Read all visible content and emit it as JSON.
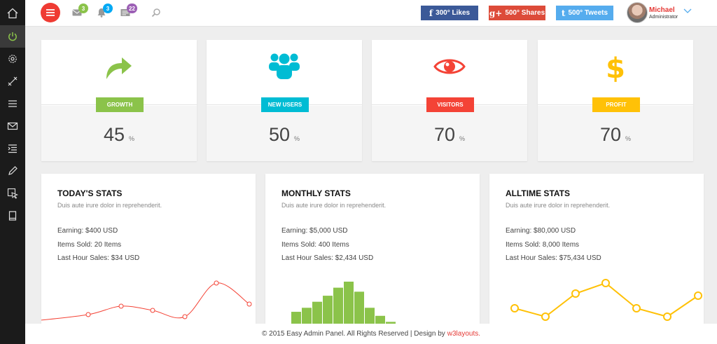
{
  "header": {
    "badges": {
      "mail": "3",
      "bell": "3",
      "messages": "22"
    },
    "social": {
      "facebook": {
        "label": "300° Likes",
        "glyph": "f",
        "color": "#3b5998"
      },
      "google": {
        "label": "500° Shares",
        "glyph": "g+",
        "color": "#dd4b39"
      },
      "twitter": {
        "label": "500° Tweets",
        "glyph": "t",
        "color": "#55acee"
      }
    },
    "user": {
      "name": "Michael",
      "role": "Administrator"
    }
  },
  "sidebar": {
    "items": [
      {
        "icon": "home-icon"
      },
      {
        "icon": "power-icon",
        "active": true
      },
      {
        "icon": "gear-icon"
      },
      {
        "icon": "tools-icon"
      },
      {
        "icon": "list-icon"
      },
      {
        "icon": "mail-icon"
      },
      {
        "icon": "indent-icon"
      },
      {
        "icon": "pencil-icon"
      },
      {
        "icon": "cursor-icon"
      },
      {
        "icon": "book-icon"
      }
    ]
  },
  "cards": [
    {
      "label": "Growth",
      "value": "45",
      "unit": "%",
      "color": "#8bc34a",
      "icon": "share-arrow-icon"
    },
    {
      "label": "New Users",
      "value": "50",
      "unit": "%",
      "color": "#00bcd4",
      "icon": "users-icon"
    },
    {
      "label": "Visitors",
      "value": "70",
      "unit": "%",
      "color": "#f44336",
      "icon": "eye-icon"
    },
    {
      "label": "Profit",
      "value": "70",
      "unit": "%",
      "color": "#ffc107",
      "icon": "dollar-icon"
    }
  ],
  "panels": [
    {
      "title": "Today's Stats",
      "subtitle": "Duis aute irure dolor in reprehenderit.",
      "earning": "Earning: $400 USD",
      "items_sold": "Items Sold: 20 Items",
      "last_hour": "Last Hour Sales: $34 USD"
    },
    {
      "title": "Monthly Stats",
      "subtitle": "Duis aute irure dolor in reprehenderit.",
      "earning": "Earning: $5,000 USD",
      "items_sold": "Items Sold: 400 Items",
      "last_hour": "Last Hour Sales: $2,434 USD"
    },
    {
      "title": "Alltime Stats",
      "subtitle": "Duis aute irure dolor in reprehenderit.",
      "earning": "Earning: $80,000 USD",
      "items_sold": "Items Sold: 8,000 Items",
      "last_hour": "Last Hour Sales: $75,434 USD"
    }
  ],
  "chart_data": [
    {
      "type": "line",
      "series": [
        {
          "values": [
            2,
            5,
            9,
            7,
            4,
            20,
            10
          ]
        }
      ],
      "color": "#f44336",
      "grid": false
    },
    {
      "type": "bar",
      "values": [
        2,
        8,
        10,
        13,
        16,
        20,
        23,
        18,
        10,
        6,
        3
      ],
      "color": "#8bc34a",
      "grid": false
    },
    {
      "type": "line",
      "series": [
        {
          "values": [
            8,
            4,
            15,
            20,
            8,
            4,
            14
          ]
        }
      ],
      "color": "#ffc107",
      "grid": false
    }
  ],
  "footer": {
    "text": "© 2015 Easy Admin Panel. All Rights Reserved | Design by",
    "link": "w3layouts."
  }
}
